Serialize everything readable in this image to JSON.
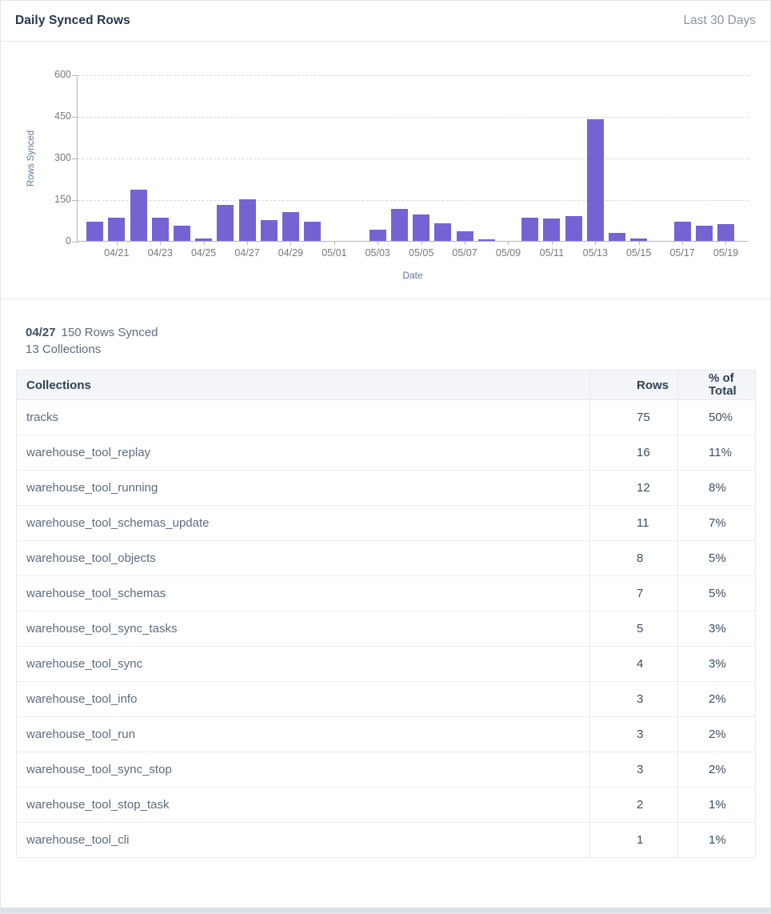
{
  "header": {
    "title": "Daily Synced Rows",
    "range_label": "Last 30 Days"
  },
  "chart_data": {
    "type": "bar",
    "title": "Daily Synced Rows",
    "xlabel": "Date",
    "ylabel": "Rows Synced",
    "ylim": [
      0,
      600
    ],
    "y_ticks": [
      0,
      150,
      300,
      450,
      600
    ],
    "grid": "horizontal-dashed",
    "legend": "none",
    "bar_color": "#7464d3",
    "x": [
      "04/20",
      "04/21",
      "04/22",
      "04/23",
      "04/24",
      "04/25",
      "04/26",
      "04/27",
      "04/28",
      "04/29",
      "04/30",
      "05/01",
      "05/02",
      "05/03",
      "05/04",
      "05/05",
      "05/06",
      "05/07",
      "05/08",
      "05/09",
      "05/10",
      "05/11",
      "05/12",
      "05/13",
      "05/14",
      "05/15",
      "05/16",
      "05/17",
      "05/18",
      "05/19"
    ],
    "values": [
      70,
      85,
      185,
      85,
      55,
      10,
      130,
      150,
      75,
      105,
      70,
      0,
      0,
      40,
      115,
      95,
      65,
      35,
      5,
      0,
      85,
      80,
      90,
      440,
      30,
      10,
      0,
      70,
      55,
      60
    ],
    "x_tick_labels": [
      "04/21",
      "04/23",
      "04/25",
      "04/27",
      "04/29",
      "05/01",
      "05/03",
      "05/05",
      "05/07",
      "05/09",
      "05/11",
      "05/13",
      "05/15",
      "05/17",
      "05/19"
    ]
  },
  "tooltip": {
    "date": "04/27",
    "rows_text": "150 Rows Synced",
    "collections_text": "13 Collections"
  },
  "table": {
    "columns": [
      "Collections",
      "Rows",
      "% of Total"
    ],
    "rows": [
      {
        "name": "tracks",
        "rows": "75",
        "pct": "50%"
      },
      {
        "name": "warehouse_tool_replay",
        "rows": "16",
        "pct": "11%"
      },
      {
        "name": "warehouse_tool_running",
        "rows": "12",
        "pct": "8%"
      },
      {
        "name": "warehouse_tool_schemas_update",
        "rows": "11",
        "pct": "7%"
      },
      {
        "name": "warehouse_tool_objects",
        "rows": "8",
        "pct": "5%"
      },
      {
        "name": "warehouse_tool_schemas",
        "rows": "7",
        "pct": "5%"
      },
      {
        "name": "warehouse_tool_sync_tasks",
        "rows": "5",
        "pct": "3%"
      },
      {
        "name": "warehouse_tool_sync",
        "rows": "4",
        "pct": "3%"
      },
      {
        "name": "warehouse_tool_info",
        "rows": "3",
        "pct": "2%"
      },
      {
        "name": "warehouse_tool_run",
        "rows": "3",
        "pct": "2%"
      },
      {
        "name": "warehouse_tool_sync_stop",
        "rows": "3",
        "pct": "2%"
      },
      {
        "name": "warehouse_tool_stop_task",
        "rows": "2",
        "pct": "1%"
      },
      {
        "name": "warehouse_tool_cli",
        "rows": "1",
        "pct": "1%"
      }
    ]
  },
  "colors": {
    "bar": "#7464d3",
    "title_text": "#24364e",
    "muted_text": "#8a94a4",
    "axis_label_text": "#5b7899",
    "tick_text": "#77797c",
    "table_header_bg": "#f4f5f8",
    "border": "#e7e9ee"
  }
}
